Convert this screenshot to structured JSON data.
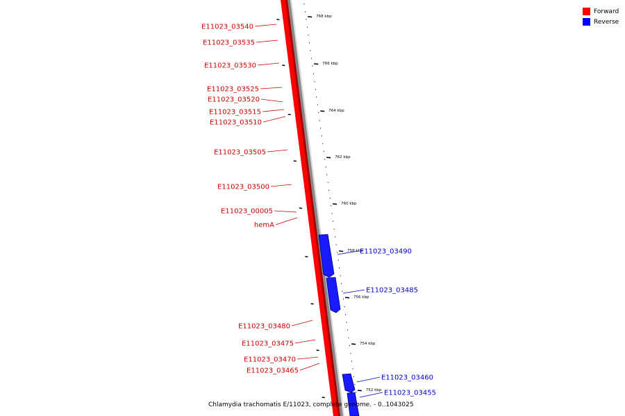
{
  "legend": {
    "items": [
      {
        "label": "Forward",
        "color": "#ff0000"
      },
      {
        "label": "Reverse",
        "color": "#0000ff"
      }
    ]
  },
  "caption": "Chlamydia trachomatis E/11023, complete genome. - 0..1043025",
  "colors": {
    "forward": "#ff0000",
    "forward_dark": "#a00000",
    "reverse": "#1a1aff",
    "reverse_dark": "#000080",
    "backbone": "#888888",
    "ticks": "#000000"
  },
  "scale": {
    "unit": "kbp",
    "labels": [
      "768 kbp",
      "766 kbp",
      "764 kbp",
      "762 kbp",
      "760 kbp",
      "758 kbp",
      "756 kbp",
      "754 kbp",
      "752 kbp"
    ]
  },
  "genes": {
    "forward": [
      "E11023_03540",
      "E11023_03535",
      "E11023_03530",
      "E11023_03525",
      "E11023_03520",
      "E11023_03515",
      "E11023_03510",
      "E11023_03505",
      "E11023_03500",
      "E11023_00005",
      "hemA",
      "E11023_03480",
      "E11023_03475",
      "E11023_03470",
      "E11023_03465"
    ],
    "reverse": [
      "E11023_03490",
      "E11023_03485",
      "E11023_03460",
      "E11023_03455"
    ]
  }
}
